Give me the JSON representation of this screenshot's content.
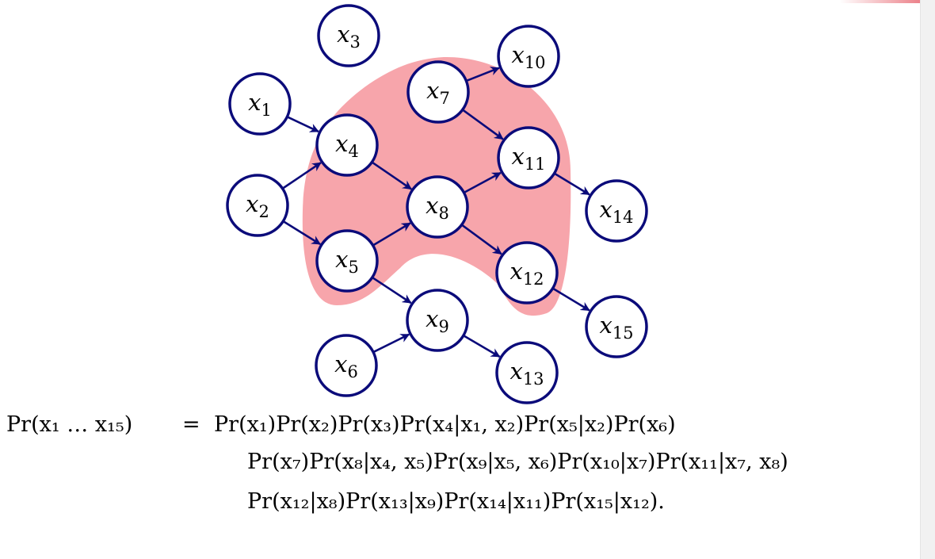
{
  "colors": {
    "node_stroke": "#0b0b7a",
    "edge": "#0b0b7a",
    "highlight_region": "#f7a5ab",
    "highlighted_label": "#e8141c",
    "label": "#000000"
  },
  "nodes": [
    {
      "id": "x1",
      "base": "x",
      "sub": "1",
      "highlighted": false
    },
    {
      "id": "x2",
      "base": "x",
      "sub": "2",
      "highlighted": false
    },
    {
      "id": "x3",
      "base": "x",
      "sub": "3",
      "highlighted": false
    },
    {
      "id": "x4",
      "base": "x",
      "sub": "4",
      "highlighted": false
    },
    {
      "id": "x5",
      "base": "x",
      "sub": "5",
      "highlighted": false
    },
    {
      "id": "x6",
      "base": "x",
      "sub": "6",
      "highlighted": false
    },
    {
      "id": "x7",
      "base": "x",
      "sub": "7",
      "highlighted": false
    },
    {
      "id": "x8",
      "base": "x",
      "sub": "8",
      "highlighted": true
    },
    {
      "id": "x9",
      "base": "x",
      "sub": "9",
      "highlighted": false
    },
    {
      "id": "x10",
      "base": "x",
      "sub": "10",
      "highlighted": false
    },
    {
      "id": "x11",
      "base": "x",
      "sub": "11",
      "highlighted": false
    },
    {
      "id": "x12",
      "base": "x",
      "sub": "12",
      "highlighted": false
    },
    {
      "id": "x13",
      "base": "x",
      "sub": "13",
      "highlighted": false
    },
    {
      "id": "x14",
      "base": "x",
      "sub": "14",
      "highlighted": false
    },
    {
      "id": "x15",
      "base": "x",
      "sub": "15",
      "highlighted": false
    }
  ],
  "edges": [
    [
      "x1",
      "x4"
    ],
    [
      "x2",
      "x4"
    ],
    [
      "x2",
      "x5"
    ],
    [
      "x4",
      "x8"
    ],
    [
      "x5",
      "x8"
    ],
    [
      "x5",
      "x9"
    ],
    [
      "x6",
      "x9"
    ],
    [
      "x7",
      "x10"
    ],
    [
      "x7",
      "x11"
    ],
    [
      "x8",
      "x11"
    ],
    [
      "x8",
      "x12"
    ],
    [
      "x9",
      "x13"
    ],
    [
      "x11",
      "x14"
    ],
    [
      "x12",
      "x15"
    ]
  ],
  "equation": {
    "lhs": "Pr(x₁ … x₁₅)",
    "equals": "=",
    "line1": "Pr(x₁)Pr(x₂)Pr(x₃)Pr(x₄|x₁, x₂)Pr(x₅|x₂)Pr(x₆)",
    "line2": "Pr(x₇)Pr(x₈|x₄, x₅)Pr(x₉|x₅, x₆)Pr(x₁₀|x₇)Pr(x₁₁|x₇, x₈)",
    "line3": "Pr(x₁₂|x₈)Pr(x₁₃|x₉)Pr(x₁₄|x₁₁)Pr(x₁₅|x₁₂)."
  }
}
